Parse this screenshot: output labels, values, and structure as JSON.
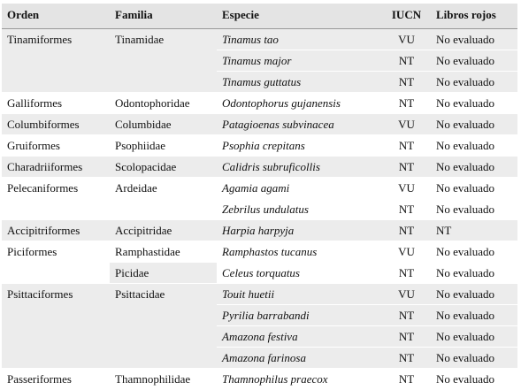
{
  "table": {
    "header": [
      "Orden",
      "Familia",
      "Especie",
      "IUCN",
      "Libros rojos"
    ],
    "groups": [
      {
        "orden": "Tinamiformes",
        "families": [
          {
            "name": "Tinamidae",
            "species": [
              {
                "name": "Tinamus tao",
                "iucn": "VU",
                "libros": "No evaluado"
              },
              {
                "name": "Tinamus major",
                "iucn": "NT",
                "libros": "No evaluado"
              },
              {
                "name": "Tinamus guttatus",
                "iucn": "NT",
                "libros": "No evaluado"
              }
            ]
          }
        ]
      },
      {
        "orden": "Galliformes",
        "families": [
          {
            "name": "Odontophoridae",
            "species": [
              {
                "name": "Odontophorus gujanensis",
                "iucn": "NT",
                "libros": "No evaluado"
              }
            ]
          }
        ]
      },
      {
        "orden": "Columbiformes",
        "families": [
          {
            "name": "Columbidae",
            "species": [
              {
                "name": "Patagioenas subvinacea",
                "iucn": "VU",
                "libros": "No evaluado"
              }
            ]
          }
        ]
      },
      {
        "orden": "Gruiformes",
        "families": [
          {
            "name": "Psophiidae",
            "species": [
              {
                "name": "Psophia crepitans",
                "iucn": "NT",
                "libros": "No evaluado"
              }
            ]
          }
        ]
      },
      {
        "orden": "Charadriiformes",
        "families": [
          {
            "name": "Scolopacidae",
            "species": [
              {
                "name": "Calidris subruficollis",
                "iucn": "NT",
                "libros": "No evaluado"
              }
            ]
          }
        ]
      },
      {
        "orden": "Pelecaniformes",
        "families": [
          {
            "name": "Ardeidae",
            "species": [
              {
                "name": "Agamia agami",
                "iucn": "VU",
                "libros": "No evaluado"
              },
              {
                "name": "Zebrilus undulatus",
                "iucn": "NT",
                "libros": "No evaluado"
              }
            ]
          }
        ]
      },
      {
        "orden": "Accipitriformes",
        "families": [
          {
            "name": "Accipitridae",
            "species": [
              {
                "name": "Harpia harpyja",
                "iucn": "NT",
                "libros": "NT"
              }
            ]
          }
        ]
      },
      {
        "orden": "Piciformes",
        "families": [
          {
            "name": "Ramphastidae",
            "species": [
              {
                "name": "Ramphastos tucanus",
                "iucn": "VU",
                "libros": "No evaluado"
              }
            ]
          },
          {
            "name": "Picidae",
            "species": [
              {
                "name": "Celeus torquatus",
                "iucn": "NT",
                "libros": "No evaluado"
              }
            ]
          }
        ]
      },
      {
        "orden": "Psittaciformes",
        "families": [
          {
            "name": "Psittacidae",
            "species": [
              {
                "name": "Touit huetii",
                "iucn": "VU",
                "libros": "No evaluado"
              },
              {
                "name": "Pyrilia barrabandi",
                "iucn": "NT",
                "libros": "No evaluado"
              },
              {
                "name": "Amazona festiva",
                "iucn": "NT",
                "libros": "No evaluado"
              },
              {
                "name": "Amazona farinosa",
                "iucn": "NT",
                "libros": "No evaluado"
              }
            ]
          }
        ]
      },
      {
        "orden": "Passeriformes",
        "families": [
          {
            "name": "Thamnophilidae",
            "species": [
              {
                "name": "Thamnophilus praecox",
                "iucn": "NT",
                "libros": "No evaluado"
              }
            ]
          }
        ]
      }
    ]
  }
}
